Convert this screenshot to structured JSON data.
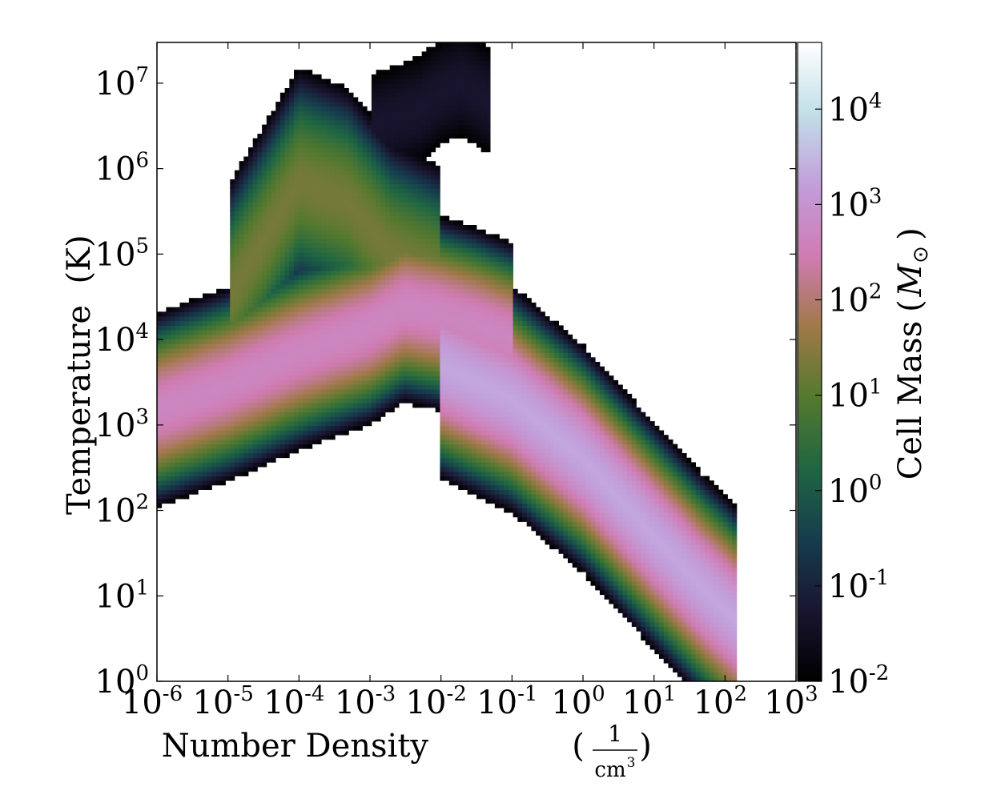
{
  "chart_data": {
    "type": "heatmap",
    "title": "",
    "xlabel": "Number Density",
    "xlabel_unit_numerator": "1",
    "xlabel_unit_denominator": "cm",
    "xlabel_unit_denominator_exp": "3",
    "ylabel": "Temperature",
    "ylabel_unit": "(K)",
    "colorbar_label": "Cell Mass",
    "colorbar_unit_symbol": "M",
    "colorbar_unit_sub": "⊙",
    "x_scale": "log",
    "y_scale": "log",
    "color_scale": "log",
    "xlim": [
      1e-06,
      1000
    ],
    "ylim": [
      1,
      30000000
    ],
    "clim": [
      0.01,
      50000
    ],
    "colormap": "cubehelix",
    "grid": false,
    "x_ticks": [
      {
        "value": 1e-06,
        "base": "10",
        "exp": "-6"
      },
      {
        "value": 1e-05,
        "base": "10",
        "exp": "-5"
      },
      {
        "value": 0.0001,
        "base": "10",
        "exp": "-4"
      },
      {
        "value": 0.001,
        "base": "10",
        "exp": "-3"
      },
      {
        "value": 0.01,
        "base": "10",
        "exp": "-2"
      },
      {
        "value": 0.1,
        "base": "10",
        "exp": "-1"
      },
      {
        "value": 1,
        "base": "10",
        "exp": "0"
      },
      {
        "value": 10,
        "base": "10",
        "exp": "1"
      },
      {
        "value": 100,
        "base": "10",
        "exp": "2"
      },
      {
        "value": 1000,
        "base": "10",
        "exp": "3"
      }
    ],
    "y_ticks": [
      {
        "value": 1,
        "base": "10",
        "exp": "0"
      },
      {
        "value": 10,
        "base": "10",
        "exp": "1"
      },
      {
        "value": 100,
        "base": "10",
        "exp": "2"
      },
      {
        "value": 1000,
        "base": "10",
        "exp": "3"
      },
      {
        "value": 10000,
        "base": "10",
        "exp": "4"
      },
      {
        "value": 100000,
        "base": "10",
        "exp": "5"
      },
      {
        "value": 1000000,
        "base": "10",
        "exp": "6"
      },
      {
        "value": 10000000,
        "base": "10",
        "exp": "7"
      }
    ],
    "colorbar_ticks": [
      {
        "value": 0.01,
        "base": "10",
        "exp": "-2"
      },
      {
        "value": 0.1,
        "base": "10",
        "exp": "-1"
      },
      {
        "value": 1,
        "base": "10",
        "exp": "0"
      },
      {
        "value": 10,
        "base": "10",
        "exp": "1"
      },
      {
        "value": 100,
        "base": "10",
        "exp": "2"
      },
      {
        "value": 1000,
        "base": "10",
        "exp": "3"
      },
      {
        "value": 10000,
        "base": "10",
        "exp": "4"
      }
    ],
    "colormap_stops": [
      "#000000",
      "#1a1530",
      "#163d4e",
      "#1f6642",
      "#54792f",
      "#a07949",
      "#d07cb3",
      "#c29eda",
      "#c2dfe8",
      "#ffffff"
    ],
    "density_features": [
      {
        "feature": "warm_branch",
        "x": [
          1e-06,
          1e-05,
          0.0001,
          0.001,
          0.003,
          0.01,
          0.03,
          0.1
        ],
        "y": [
          1500,
          3000,
          7000,
          14000,
          25000,
          20000,
          15000,
          10000
        ],
        "peak_mass": 500
      },
      {
        "feature": "dense_branch",
        "x": [
          0.01,
          0.1,
          1,
          10,
          50,
          100,
          150
        ],
        "y": [
          5000,
          2000,
          400,
          50,
          12,
          7,
          5
        ],
        "peak_mass": 2000
      },
      {
        "feature": "hot_plume",
        "x": [
          1e-05,
          4e-05,
          0.0001,
          0.0005,
          0.002,
          0.01
        ],
        "y": [
          30000,
          200000,
          700000,
          400000,
          100000,
          50000
        ],
        "peak_mass": 20
      },
      {
        "feature": "hot_halo",
        "x": [
          0.001,
          0.005,
          0.01,
          0.02,
          0.05
        ],
        "y": [
          3000000,
          5000000,
          8000000,
          10000000,
          6000000
        ],
        "peak_mass": 0.05
      }
    ]
  }
}
